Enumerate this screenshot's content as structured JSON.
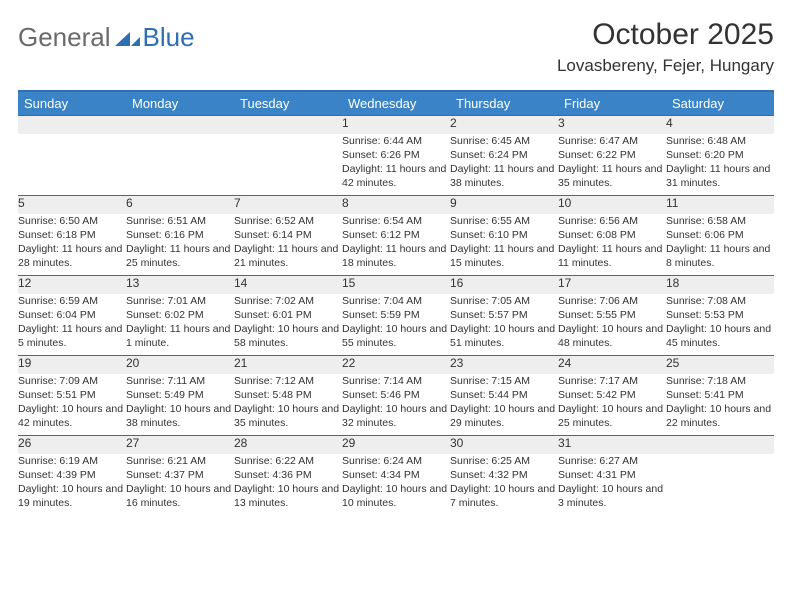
{
  "brand": {
    "word1": "General",
    "word2": "Blue"
  },
  "title": "October 2025",
  "location": "Lovasbereny, Fejer, Hungary",
  "colors": {
    "header_bg": "#3a83c6",
    "header_border": "#2e6fb4",
    "daynum_bg": "#eeeeee",
    "text": "#333333",
    "brand_gray": "#6a6a6a",
    "brand_blue": "#2e6fb4"
  },
  "fonts": {
    "title_pt": 30,
    "location_pt": 17,
    "dayhead_pt": 13,
    "daynum_pt": 12,
    "body_pt": 10.5
  },
  "day_headers": [
    "Sunday",
    "Monday",
    "Tuesday",
    "Wednesday",
    "Thursday",
    "Friday",
    "Saturday"
  ],
  "weeks": [
    [
      {
        "n": "",
        "sr": "",
        "ss": "",
        "dl": ""
      },
      {
        "n": "",
        "sr": "",
        "ss": "",
        "dl": ""
      },
      {
        "n": "",
        "sr": "",
        "ss": "",
        "dl": ""
      },
      {
        "n": "1",
        "sr": "Sunrise: 6:44 AM",
        "ss": "Sunset: 6:26 PM",
        "dl": "Daylight: 11 hours and 42 minutes."
      },
      {
        "n": "2",
        "sr": "Sunrise: 6:45 AM",
        "ss": "Sunset: 6:24 PM",
        "dl": "Daylight: 11 hours and 38 minutes."
      },
      {
        "n": "3",
        "sr": "Sunrise: 6:47 AM",
        "ss": "Sunset: 6:22 PM",
        "dl": "Daylight: 11 hours and 35 minutes."
      },
      {
        "n": "4",
        "sr": "Sunrise: 6:48 AM",
        "ss": "Sunset: 6:20 PM",
        "dl": "Daylight: 11 hours and 31 minutes."
      }
    ],
    [
      {
        "n": "5",
        "sr": "Sunrise: 6:50 AM",
        "ss": "Sunset: 6:18 PM",
        "dl": "Daylight: 11 hours and 28 minutes."
      },
      {
        "n": "6",
        "sr": "Sunrise: 6:51 AM",
        "ss": "Sunset: 6:16 PM",
        "dl": "Daylight: 11 hours and 25 minutes."
      },
      {
        "n": "7",
        "sr": "Sunrise: 6:52 AM",
        "ss": "Sunset: 6:14 PM",
        "dl": "Daylight: 11 hours and 21 minutes."
      },
      {
        "n": "8",
        "sr": "Sunrise: 6:54 AM",
        "ss": "Sunset: 6:12 PM",
        "dl": "Daylight: 11 hours and 18 minutes."
      },
      {
        "n": "9",
        "sr": "Sunrise: 6:55 AM",
        "ss": "Sunset: 6:10 PM",
        "dl": "Daylight: 11 hours and 15 minutes."
      },
      {
        "n": "10",
        "sr": "Sunrise: 6:56 AM",
        "ss": "Sunset: 6:08 PM",
        "dl": "Daylight: 11 hours and 11 minutes."
      },
      {
        "n": "11",
        "sr": "Sunrise: 6:58 AM",
        "ss": "Sunset: 6:06 PM",
        "dl": "Daylight: 11 hours and 8 minutes."
      }
    ],
    [
      {
        "n": "12",
        "sr": "Sunrise: 6:59 AM",
        "ss": "Sunset: 6:04 PM",
        "dl": "Daylight: 11 hours and 5 minutes."
      },
      {
        "n": "13",
        "sr": "Sunrise: 7:01 AM",
        "ss": "Sunset: 6:02 PM",
        "dl": "Daylight: 11 hours and 1 minute."
      },
      {
        "n": "14",
        "sr": "Sunrise: 7:02 AM",
        "ss": "Sunset: 6:01 PM",
        "dl": "Daylight: 10 hours and 58 minutes."
      },
      {
        "n": "15",
        "sr": "Sunrise: 7:04 AM",
        "ss": "Sunset: 5:59 PM",
        "dl": "Daylight: 10 hours and 55 minutes."
      },
      {
        "n": "16",
        "sr": "Sunrise: 7:05 AM",
        "ss": "Sunset: 5:57 PM",
        "dl": "Daylight: 10 hours and 51 minutes."
      },
      {
        "n": "17",
        "sr": "Sunrise: 7:06 AM",
        "ss": "Sunset: 5:55 PM",
        "dl": "Daylight: 10 hours and 48 minutes."
      },
      {
        "n": "18",
        "sr": "Sunrise: 7:08 AM",
        "ss": "Sunset: 5:53 PM",
        "dl": "Daylight: 10 hours and 45 minutes."
      }
    ],
    [
      {
        "n": "19",
        "sr": "Sunrise: 7:09 AM",
        "ss": "Sunset: 5:51 PM",
        "dl": "Daylight: 10 hours and 42 minutes."
      },
      {
        "n": "20",
        "sr": "Sunrise: 7:11 AM",
        "ss": "Sunset: 5:49 PM",
        "dl": "Daylight: 10 hours and 38 minutes."
      },
      {
        "n": "21",
        "sr": "Sunrise: 7:12 AM",
        "ss": "Sunset: 5:48 PM",
        "dl": "Daylight: 10 hours and 35 minutes."
      },
      {
        "n": "22",
        "sr": "Sunrise: 7:14 AM",
        "ss": "Sunset: 5:46 PM",
        "dl": "Daylight: 10 hours and 32 minutes."
      },
      {
        "n": "23",
        "sr": "Sunrise: 7:15 AM",
        "ss": "Sunset: 5:44 PM",
        "dl": "Daylight: 10 hours and 29 minutes."
      },
      {
        "n": "24",
        "sr": "Sunrise: 7:17 AM",
        "ss": "Sunset: 5:42 PM",
        "dl": "Daylight: 10 hours and 25 minutes."
      },
      {
        "n": "25",
        "sr": "Sunrise: 7:18 AM",
        "ss": "Sunset: 5:41 PM",
        "dl": "Daylight: 10 hours and 22 minutes."
      }
    ],
    [
      {
        "n": "26",
        "sr": "Sunrise: 6:19 AM",
        "ss": "Sunset: 4:39 PM",
        "dl": "Daylight: 10 hours and 19 minutes."
      },
      {
        "n": "27",
        "sr": "Sunrise: 6:21 AM",
        "ss": "Sunset: 4:37 PM",
        "dl": "Daylight: 10 hours and 16 minutes."
      },
      {
        "n": "28",
        "sr": "Sunrise: 6:22 AM",
        "ss": "Sunset: 4:36 PM",
        "dl": "Daylight: 10 hours and 13 minutes."
      },
      {
        "n": "29",
        "sr": "Sunrise: 6:24 AM",
        "ss": "Sunset: 4:34 PM",
        "dl": "Daylight: 10 hours and 10 minutes."
      },
      {
        "n": "30",
        "sr": "Sunrise: 6:25 AM",
        "ss": "Sunset: 4:32 PM",
        "dl": "Daylight: 10 hours and 7 minutes."
      },
      {
        "n": "31",
        "sr": "Sunrise: 6:27 AM",
        "ss": "Sunset: 4:31 PM",
        "dl": "Daylight: 10 hours and 3 minutes."
      },
      {
        "n": "",
        "sr": "",
        "ss": "",
        "dl": ""
      }
    ]
  ]
}
